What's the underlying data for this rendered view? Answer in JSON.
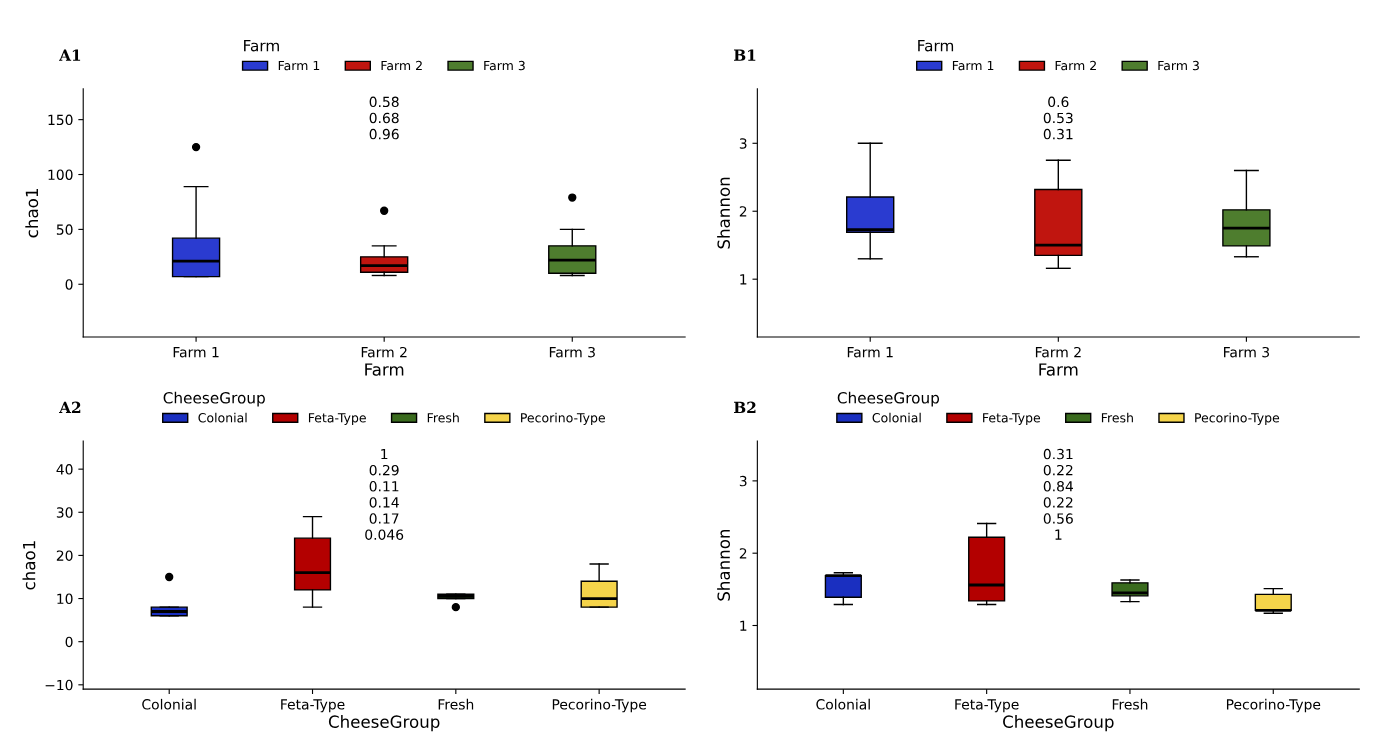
{
  "chart_data": [
    {
      "type": "box",
      "title": "A1",
      "xlabel": "Farm",
      "ylabel": "chao1",
      "legend_title": "Farm",
      "legend": "top",
      "grid": false,
      "categories": [
        "Farm 1",
        "Farm 2",
        "Farm 3"
      ],
      "series": [
        {
          "name": "Farm 1",
          "color": "#2a3bd0",
          "boxes": [
            {
              "low": 7,
              "q1": 7,
              "median": 21,
              "q3": 42,
              "high": 89,
              "outliers": [
                125
              ]
            },
            null,
            null
          ]
        },
        {
          "name": "Farm 2",
          "color": "#c0150f",
          "boxes": [
            null,
            {
              "low": 8,
              "q1": 11,
              "median": 17,
              "q3": 25,
              "high": 35,
              "outliers": [
                67
              ]
            },
            null
          ]
        },
        {
          "name": "Farm 3",
          "color": "#4e7d2e",
          "boxes": [
            null,
            null,
            {
              "low": 8,
              "q1": 10,
              "median": 22,
              "q3": 35,
              "high": 50,
              "outliers": [
                79
              ]
            }
          ]
        }
      ],
      "ylim": [
        -48,
        178
      ],
      "yticks": [
        0,
        50,
        100,
        150
      ],
      "annotations": [
        "0.58",
        "0.68",
        "0.96"
      ]
    },
    {
      "type": "box",
      "title": "B1",
      "xlabel": "Farm",
      "ylabel": "Shannon",
      "legend_title": "Farm",
      "legend": "top",
      "grid": false,
      "categories": [
        "Farm 1",
        "Farm 2",
        "Farm 3"
      ],
      "series": [
        {
          "name": "Farm 1",
          "color": "#2a3bd0",
          "boxes": [
            {
              "low": 1.3,
              "q1": 1.69,
              "median": 1.73,
              "q3": 2.21,
              "high": 3.0
            },
            null,
            null
          ]
        },
        {
          "name": "Farm 2",
          "color": "#c0150f",
          "boxes": [
            null,
            {
              "low": 1.16,
              "q1": 1.35,
              "median": 1.5,
              "q3": 2.32,
              "high": 2.75
            },
            null
          ]
        },
        {
          "name": "Farm 3",
          "color": "#4e7d2e",
          "boxes": [
            null,
            null,
            {
              "low": 1.33,
              "q1": 1.49,
              "median": 1.75,
              "q3": 2.02,
              "high": 2.6
            }
          ]
        }
      ],
      "ylim": [
        0.15,
        3.8
      ],
      "yticks": [
        1,
        2,
        3
      ],
      "annotations": [
        "0.6",
        "0.53",
        "0.31"
      ]
    },
    {
      "type": "box",
      "title": "A2",
      "xlabel": "CheeseGroup",
      "ylabel": "chao1",
      "legend_title": "CheeseGroup",
      "legend": "top",
      "grid": false,
      "categories": [
        "Colonial",
        "Feta-Type",
        "Fresh",
        "Pecorino-Type"
      ],
      "series": [
        {
          "name": "Colonial",
          "color": "#1a2fc0",
          "boxes": [
            {
              "low": 6,
              "q1": 6,
              "median": 7,
              "q3": 8,
              "high": 8,
              "outliers": [
                15
              ]
            },
            null,
            null,
            null
          ]
        },
        {
          "name": "Feta-Type",
          "color": "#b30000",
          "boxes": [
            null,
            {
              "low": 8,
              "q1": 12,
              "median": 16,
              "q3": 24,
              "high": 29
            },
            null,
            null
          ]
        },
        {
          "name": "Fresh",
          "color": "#3a6b1e",
          "boxes": [
            null,
            null,
            {
              "low": 10,
              "q1": 10,
              "median": 10.5,
              "q3": 11,
              "high": 11,
              "outliers": [
                8
              ]
            },
            null
          ]
        },
        {
          "name": "Pecorino-Type",
          "color": "#f5d44a",
          "boxes": [
            null,
            null,
            null,
            {
              "low": 8,
              "q1": 8,
              "median": 10,
              "q3": 14,
              "high": 18
            }
          ]
        }
      ],
      "ylim": [
        -11,
        46.5
      ],
      "yticks": [
        {
          "value": -10,
          "label": "−10"
        },
        0,
        10,
        20,
        30,
        40
      ],
      "annotations": [
        "1",
        "0.29",
        "0.11",
        "0.14",
        "0.17",
        "0.046"
      ]
    },
    {
      "type": "box",
      "title": "B2",
      "xlabel": "CheeseGroup",
      "ylabel": "Shannon",
      "legend_title": "CheeseGroup",
      "legend": "top",
      "grid": false,
      "categories": [
        "Colonial",
        "Feta-Type",
        "Fresh",
        "Pecorino-Type"
      ],
      "series": [
        {
          "name": "Colonial",
          "color": "#1a2fc0",
          "boxes": [
            {
              "low": 1.29,
              "q1": 1.39,
              "median": 1.69,
              "q3": 1.69,
              "high": 1.73
            },
            null,
            null,
            null
          ]
        },
        {
          "name": "Feta-Type",
          "color": "#b30000",
          "boxes": [
            null,
            {
              "low": 1.29,
              "q1": 1.34,
              "median": 1.56,
              "q3": 2.22,
              "high": 2.41
            },
            null,
            null
          ]
        },
        {
          "name": "Fresh",
          "color": "#3a6b1e",
          "boxes": [
            null,
            null,
            {
              "low": 1.33,
              "q1": 1.41,
              "median": 1.45,
              "q3": 1.59,
              "high": 1.63
            },
            null
          ]
        },
        {
          "name": "Pecorino-Type",
          "color": "#f5d44a",
          "boxes": [
            null,
            null,
            null,
            {
              "low": 1.17,
              "q1": 1.21,
              "median": 1.21,
              "q3": 1.43,
              "high": 1.51
            }
          ]
        }
      ],
      "ylim": [
        0.12,
        3.55
      ],
      "yticks": [
        1,
        2,
        3
      ],
      "annotations": [
        "0.31",
        "0.22",
        "0.84",
        "0.22",
        "0.56",
        "1"
      ]
    }
  ]
}
